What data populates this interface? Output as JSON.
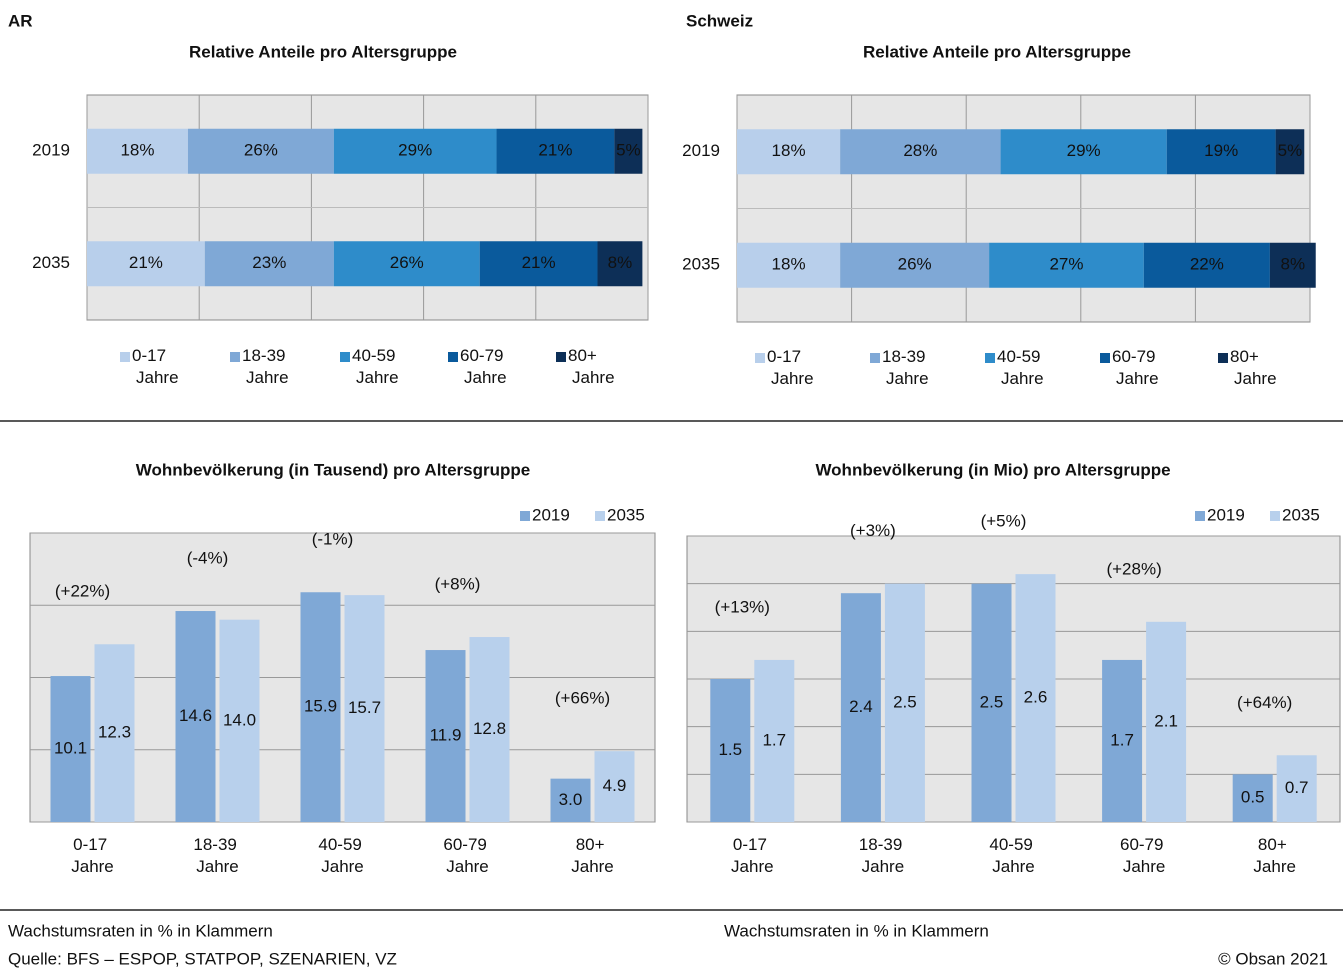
{
  "headings": [
    "AR",
    "Schweiz"
  ],
  "notes": [
    "Wachstumsraten in % in Klammern",
    "Wachstumsraten in % in Klammern"
  ],
  "source": "Quelle: BFS – ESPOP, STATPOP, SZENARIEN, VZ",
  "copyright": "© Obsan 2021",
  "chart_data": [
    {
      "type": "stacked_barh",
      "title": "Relative Anteile pro Altersgruppe",
      "categories": [
        "2019",
        "2035"
      ],
      "series": [
        {
          "name": "0-17 Jahre",
          "color": "#b8cfeb",
          "values": [
            18,
            21
          ],
          "value_labels": [
            "18%",
            "21%"
          ]
        },
        {
          "name": "18-39 Jahre",
          "color": "#7fa8d6",
          "values": [
            26,
            23
          ],
          "value_labels": [
            "26%",
            "23%"
          ]
        },
        {
          "name": "40-59 Jahre",
          "color": "#2e8cca",
          "values": [
            29,
            26
          ],
          "value_labels": [
            "29%",
            "26%"
          ]
        },
        {
          "name": "60-79 Jahre",
          "color": "#0a5a9c",
          "values": [
            21,
            21
          ],
          "value_labels": [
            "21%",
            "21%"
          ]
        },
        {
          "name": "80+ Jahre",
          "color": "#0d2f57",
          "values": [
            5,
            8
          ],
          "value_labels": [
            "5%",
            "8%"
          ]
        }
      ],
      "xlim": [
        0,
        100
      ],
      "xticks": [
        0,
        20,
        40,
        60,
        80,
        100
      ],
      "grid": true,
      "legend": "bottom"
    },
    {
      "type": "stacked_barh",
      "title": "Relative Anteile pro Altersgruppe",
      "categories": [
        "2019",
        "2035"
      ],
      "series": [
        {
          "name": "0-17 Jahre",
          "color": "#b8cfeb",
          "values": [
            18,
            18
          ],
          "value_labels": [
            "18%",
            "18%"
          ]
        },
        {
          "name": "18-39 Jahre",
          "color": "#7fa8d6",
          "values": [
            28,
            26
          ],
          "value_labels": [
            "28%",
            "26%"
          ]
        },
        {
          "name": "40-59 Jahre",
          "color": "#2e8cca",
          "values": [
            29,
            27
          ],
          "value_labels": [
            "29%",
            "27%"
          ]
        },
        {
          "name": "60-79 Jahre",
          "color": "#0a5a9c",
          "values": [
            19,
            22
          ],
          "value_labels": [
            "19%",
            "22%"
          ]
        },
        {
          "name": "80+ Jahre",
          "color": "#0d2f57",
          "values": [
            5,
            8
          ],
          "value_labels": [
            "5%",
            "8%"
          ]
        }
      ],
      "xlim": [
        0,
        100
      ],
      "xticks": [
        0,
        20,
        40,
        60,
        80,
        100
      ],
      "grid": true,
      "legend": "bottom"
    },
    {
      "type": "bar",
      "title": "Wohnbevölkerung (in Tausend) pro Altersgruppe",
      "categories": [
        "0-17 Jahre",
        "18-39 Jahre",
        "40-59 Jahre",
        "60-79 Jahre",
        "80+ Jahre"
      ],
      "series": [
        {
          "name": "2019",
          "color": "#7fa8d6",
          "values": [
            10.1,
            14.6,
            15.9,
            11.9,
            3.0
          ],
          "value_labels": [
            "10.1",
            "14.6",
            "15.9",
            "11.9",
            "3.0"
          ]
        },
        {
          "name": "2035",
          "color": "#b8d0ec",
          "values": [
            12.3,
            14.0,
            15.7,
            12.8,
            4.9
          ],
          "value_labels": [
            "12.3",
            "14.0",
            "15.7",
            "12.8",
            "4.9"
          ]
        }
      ],
      "annotations": [
        "(+22%)",
        "(-4%)",
        "(-1%)",
        "(+8%)",
        "(+66%)"
      ],
      "ylim": [
        0,
        20
      ],
      "yticks": [
        0,
        5,
        10,
        15,
        20
      ],
      "grid": true,
      "legend": "top-right"
    },
    {
      "type": "bar",
      "title": "Wohnbevölkerung (in Mio) pro Altersgruppe",
      "categories": [
        "0-17 Jahre",
        "18-39 Jahre",
        "40-59 Jahre",
        "60-79 Jahre",
        "80+ Jahre"
      ],
      "series": [
        {
          "name": "2019",
          "color": "#7fa8d6",
          "values": [
            1.5,
            2.4,
            2.5,
            1.7,
            0.5
          ],
          "value_labels": [
            "1.5",
            "2.4",
            "2.5",
            "1.7",
            "0.5"
          ]
        },
        {
          "name": "2035",
          "color": "#b8d0ec",
          "values": [
            1.7,
            2.5,
            2.6,
            2.1,
            0.7
          ],
          "value_labels": [
            "1.7",
            "2.5",
            "2.6",
            "2.1",
            "0.7"
          ]
        }
      ],
      "annotations": [
        "(+13%)",
        "(+3%)",
        "(+5%)",
        "(+28%)",
        "(+64%)"
      ],
      "ylim": [
        0,
        3
      ],
      "yticks": [
        0,
        0.5,
        1,
        1.5,
        2,
        2.5,
        3
      ],
      "grid": true,
      "legend": "top-right"
    }
  ]
}
